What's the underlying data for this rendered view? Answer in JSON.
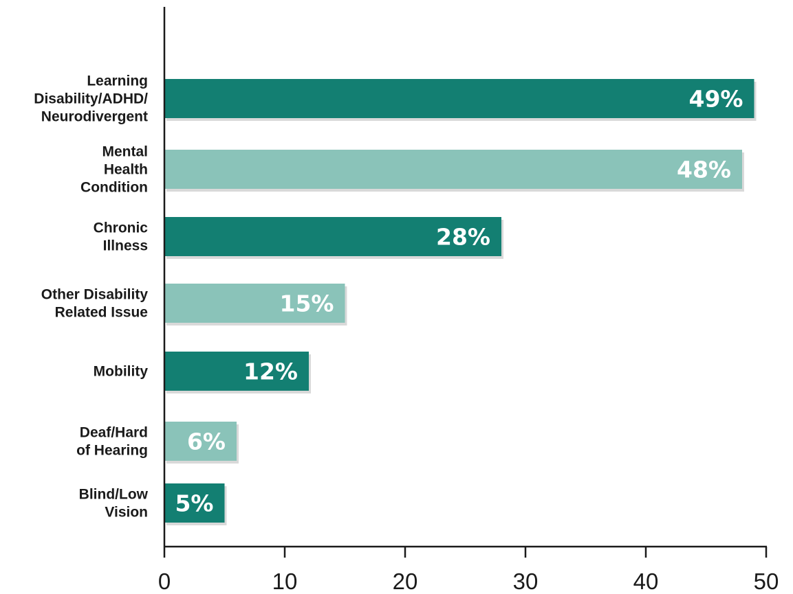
{
  "chart_data": {
    "type": "bar",
    "orientation": "horizontal",
    "categories": [
      [
        "Learning",
        "Disability/ADHD/",
        "Neurodivergent"
      ],
      [
        "Mental",
        "Health",
        "Condition"
      ],
      [
        "Chronic",
        "Illness"
      ],
      [
        "Other Disability",
        "Related Issue"
      ],
      [
        "Mobility"
      ],
      [
        "Deaf/Hard",
        "of Hearing"
      ],
      [
        "Blind/Low",
        "Vision"
      ]
    ],
    "values": [
      49,
      48,
      28,
      15,
      12,
      6,
      5
    ],
    "value_labels": [
      "49%",
      "48%",
      "28%",
      "15%",
      "12%",
      "6%",
      "5%"
    ],
    "xlim": [
      0,
      50
    ],
    "x_ticks": [
      "0",
      "10",
      "20",
      "30",
      "40",
      "50"
    ],
    "title": "",
    "xlabel": "",
    "ylabel": "",
    "grid": false,
    "colors": {
      "bar_dark": "#137f72",
      "bar_light": "#8ac3b9",
      "shadow": "#c9c9c9",
      "axis": "#1a1a1a"
    }
  }
}
